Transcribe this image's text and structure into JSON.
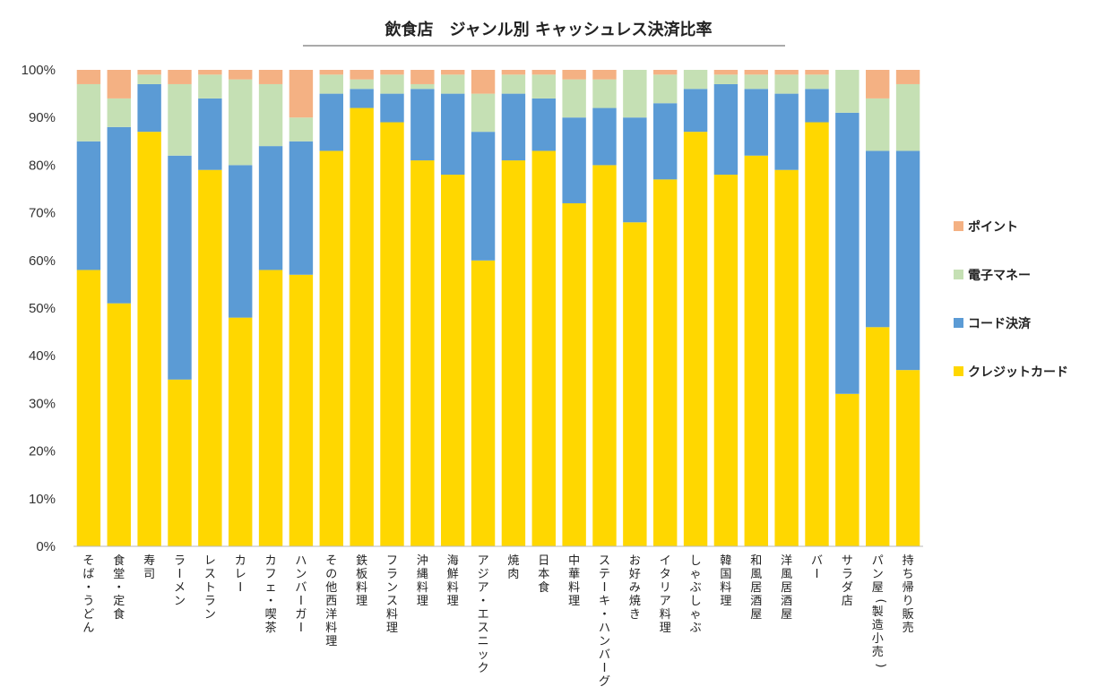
{
  "chart_data": {
    "type": "bar",
    "stacked": true,
    "title": "飲食店　ジャンル別 キャッシュレス決済比率",
    "xlabel": "",
    "ylabel": "",
    "ylim": [
      0,
      1
    ],
    "yticks": [
      "0%",
      "10%",
      "20%",
      "30%",
      "40%",
      "50%",
      "60%",
      "70%",
      "80%",
      "90%",
      "100%"
    ],
    "legend_position": "right",
    "categories": [
      "そば・うどん",
      "食堂・定食",
      "寿司",
      "ラーメン",
      "レストラン",
      "カレー",
      "カフェ・喫茶",
      "ハンバーガー",
      "その他西洋料理",
      "鉄板料理",
      "フランス料理",
      "沖縄料理",
      "海鮮料理",
      "アジア・エスニック",
      "焼肉",
      "日本食",
      "中華料理",
      "ステーキ・ハンバーグ",
      "お好み焼き",
      "イタリア料理",
      "しゃぶしゃぶ",
      "韓国料理",
      "和風居酒屋",
      "洋風居酒屋",
      "バー",
      "サラダ店",
      "パン屋(製造小売)",
      "持ち帰り販売"
    ],
    "series": [
      {
        "name": "クレジットカード",
        "color": "#FFD700",
        "values": [
          0.58,
          0.51,
          0.87,
          0.35,
          0.79,
          0.48,
          0.58,
          0.57,
          0.83,
          0.92,
          0.89,
          0.81,
          0.78,
          0.6,
          0.81,
          0.83,
          0.72,
          0.8,
          0.68,
          0.77,
          0.87,
          0.78,
          0.82,
          0.79,
          0.89,
          0.32,
          0.46,
          0.37
        ]
      },
      {
        "name": "コード決済",
        "color": "#5B9BD5",
        "values": [
          0.27,
          0.37,
          0.1,
          0.47,
          0.15,
          0.32,
          0.26,
          0.28,
          0.12,
          0.04,
          0.06,
          0.15,
          0.17,
          0.27,
          0.14,
          0.11,
          0.18,
          0.12,
          0.22,
          0.16,
          0.09,
          0.19,
          0.14,
          0.16,
          0.07,
          0.59,
          0.37,
          0.46
        ]
      },
      {
        "name": "電子マネー",
        "color": "#C5E0B4",
        "values": [
          0.12,
          0.06,
          0.02,
          0.15,
          0.05,
          0.18,
          0.13,
          0.05,
          0.04,
          0.02,
          0.04,
          0.01,
          0.04,
          0.08,
          0.04,
          0.05,
          0.08,
          0.06,
          0.1,
          0.06,
          0.04,
          0.02,
          0.03,
          0.04,
          0.03,
          0.09,
          0.11,
          0.14
        ]
      },
      {
        "name": "ポイント",
        "color": "#F4B183",
        "values": [
          0.03,
          0.06,
          0.01,
          0.03,
          0.01,
          0.02,
          0.03,
          0.1,
          0.01,
          0.02,
          0.01,
          0.03,
          0.01,
          0.05,
          0.01,
          0.01,
          0.02,
          0.02,
          0.0,
          0.01,
          0.0,
          0.01,
          0.01,
          0.01,
          0.01,
          0.0,
          0.06,
          0.03
        ]
      }
    ],
    "legend_order": [
      "ポイント",
      "電子マネー",
      "コード決済",
      "クレジットカード"
    ]
  }
}
